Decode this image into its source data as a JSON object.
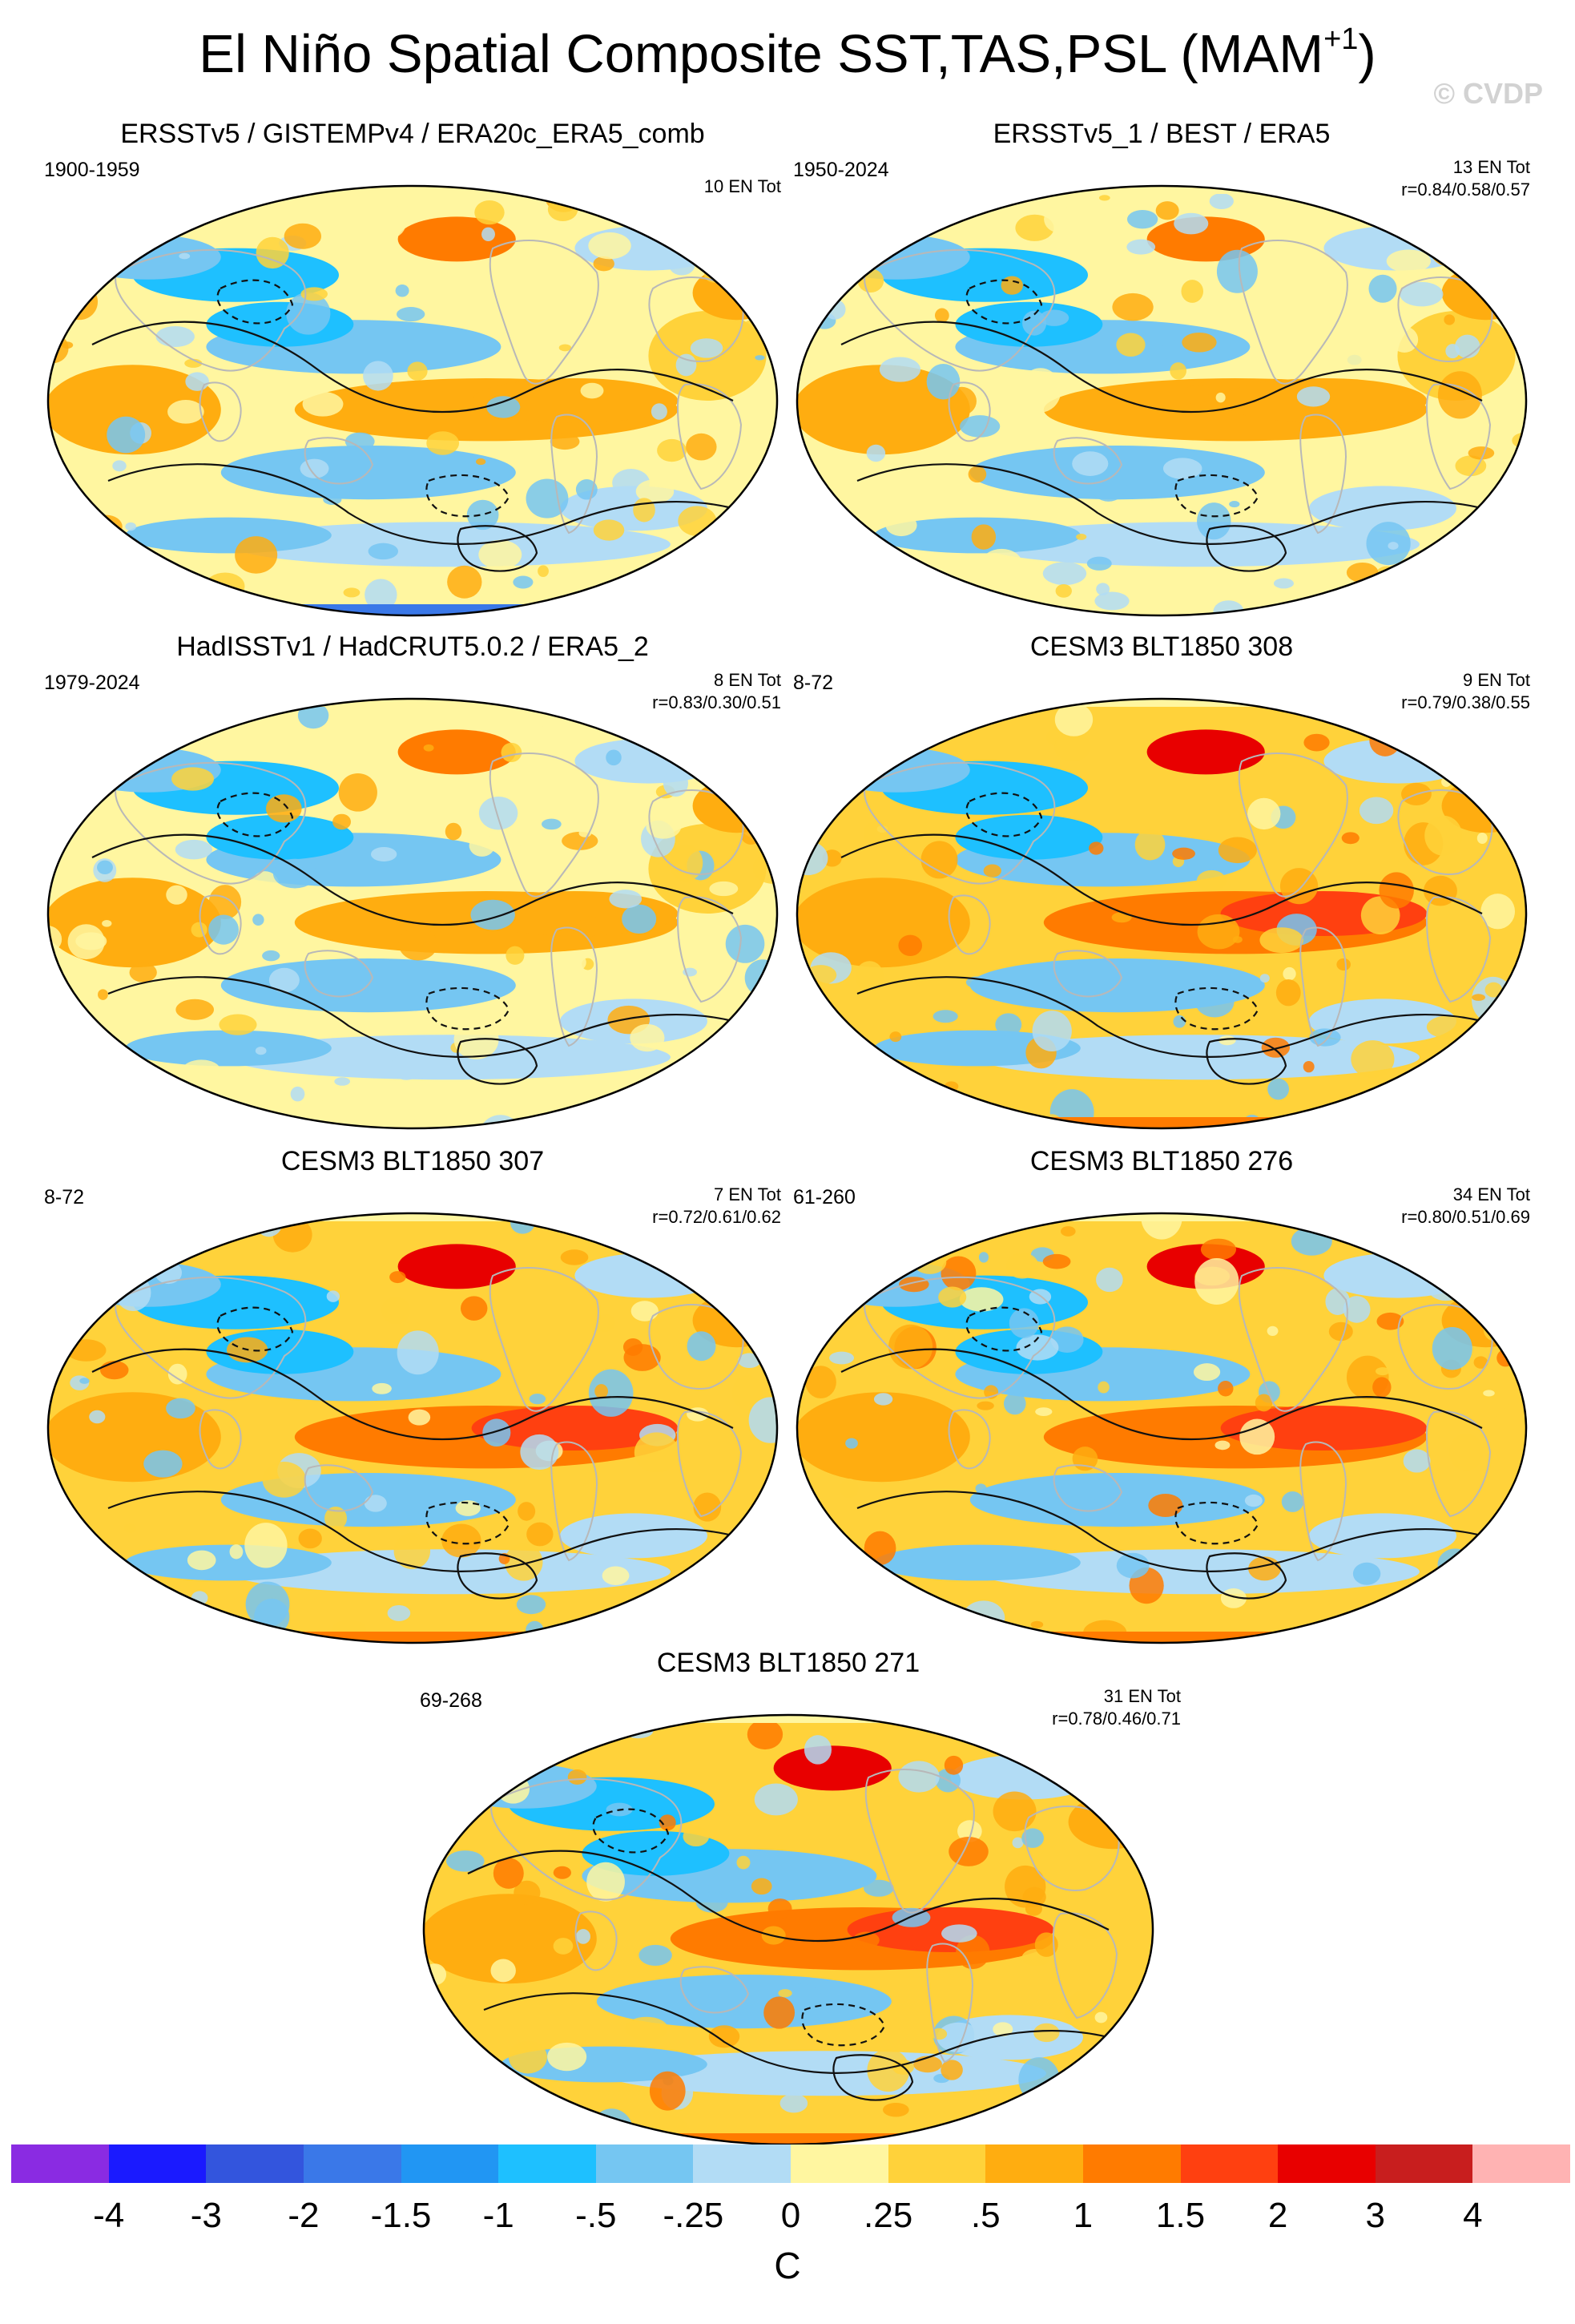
{
  "figure": {
    "title": "El Niño Spatial Composite SST,TAS,PSL (MAM",
    "title_sup": "+1",
    "title_end": ")",
    "watermark": "© CVDP"
  },
  "panels": [
    {
      "title": "ERSSTv5 / GISTEMPv4 / ERA20c_ERA5_comb",
      "period": "1900-1959",
      "events": "10 EN Tot",
      "corr": "",
      "theme": "obs"
    },
    {
      "title": "ERSSTv5_1 / BEST / ERA5",
      "period": "1950-2024",
      "events": "13 EN Tot",
      "corr": "r=0.84/0.58/0.57",
      "theme": "obs"
    },
    {
      "title": "HadISSTv1 / HadCRUT5.0.2 / ERA5_2",
      "period": "1979-2024",
      "events": "8 EN Tot",
      "corr": "r=0.83/0.30/0.51",
      "theme": "obs"
    },
    {
      "title": "CESM3 BLT1850 308",
      "period": "8-72",
      "events": "9 EN Tot",
      "corr": "r=0.79/0.38/0.55",
      "theme": "model"
    },
    {
      "title": "CESM3 BLT1850 307",
      "period": "8-72",
      "events": "7 EN Tot",
      "corr": "r=0.72/0.61/0.62",
      "theme": "model"
    },
    {
      "title": "CESM3 BLT1850 276",
      "period": "61-260",
      "events": "34 EN Tot",
      "corr": "r=0.80/0.51/0.69",
      "theme": "model"
    },
    {
      "title": "CESM3 BLT1850 271",
      "period": "69-268",
      "events": "31 EN Tot",
      "corr": "r=0.78/0.46/0.71",
      "theme": "model"
    }
  ],
  "colorbar": {
    "unit": "C",
    "colors": [
      "#8a2be2",
      "#1a1aff",
      "#3355dd",
      "#3a78e8",
      "#2196f3",
      "#1ec0ff",
      "#75c6f2",
      "#b2dcf5",
      "#fff6a0",
      "#ffd23a",
      "#ffad10",
      "#ff7b00",
      "#ff4010",
      "#e80000",
      "#c81e1e",
      "#ffb3b3"
    ],
    "labels": [
      "-4",
      "-3",
      "-2",
      "-1.5",
      "-1",
      "-.5",
      "-.25",
      "0",
      ".25",
      ".5",
      "1",
      "1.5",
      "2",
      "3",
      "4"
    ]
  },
  "chart_data": {
    "type": "heatmap",
    "title": "El Niño Spatial Composite SST,TAS,PSL (MAM+1)",
    "variables": [
      "SST",
      "TAS",
      "PSL"
    ],
    "unit": "C",
    "color_levels": [
      -4,
      -3,
      -2,
      -1.5,
      -1,
      -0.5,
      -0.25,
      0,
      0.25,
      0.5,
      1,
      1.5,
      2,
      3,
      4
    ],
    "panels": [
      {
        "name": "ERSSTv5 / GISTEMPv4 / ERA20c_ERA5_comb",
        "period": "1900-1959",
        "en_events": 10
      },
      {
        "name": "ERSSTv5_1 / BEST / ERA5",
        "period": "1950-2024",
        "en_events": 13,
        "r": [
          0.84,
          0.58,
          0.57
        ]
      },
      {
        "name": "HadISSTv1 / HadCRUT5.0.2 / ERA5_2",
        "period": "1979-2024",
        "en_events": 8,
        "r": [
          0.83,
          0.3,
          0.51
        ]
      },
      {
        "name": "CESM3 BLT1850 308",
        "period": "8-72",
        "en_events": 9,
        "r": [
          0.79,
          0.38,
          0.55
        ]
      },
      {
        "name": "CESM3 BLT1850 307",
        "period": "8-72",
        "en_events": 7,
        "r": [
          0.72,
          0.61,
          0.62
        ]
      },
      {
        "name": "CESM3 BLT1850 276",
        "period": "61-260",
        "en_events": 34,
        "r": [
          0.8,
          0.51,
          0.69
        ]
      },
      {
        "name": "CESM3 BLT1850 271",
        "period": "69-268",
        "en_events": 31,
        "r": [
          0.78,
          0.46,
          0.71
        ]
      }
    ]
  }
}
